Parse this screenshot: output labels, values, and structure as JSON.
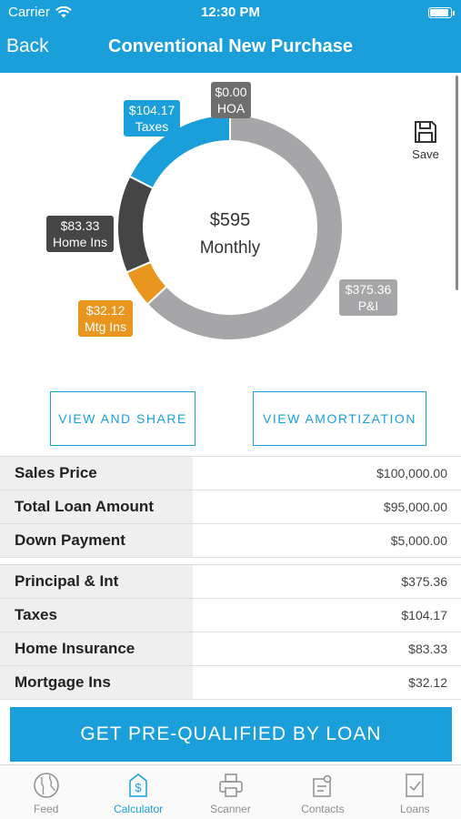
{
  "status_bar": {
    "carrier": "Carrier",
    "time": "12:30 PM"
  },
  "nav": {
    "back_label": "Back",
    "title": "Conventional New Purchase"
  },
  "chart_data": {
    "type": "pie",
    "center_amount": "$595",
    "center_label": "Monthly",
    "slices": [
      {
        "name": "P&I",
        "display": "$375.36",
        "value": 375.36,
        "color": "#a6a6a8"
      },
      {
        "name": "Mtg Ins",
        "display": "$32.12",
        "value": 32.12,
        "color": "#e8961e"
      },
      {
        "name": "Home Ins",
        "display": "$83.33",
        "value": 83.33,
        "color": "#454545"
      },
      {
        "name": "Taxes",
        "display": "$104.17",
        "value": 104.17,
        "color": "#1a9fdb"
      },
      {
        "name": "HOA",
        "display": "$0.00",
        "value": 0,
        "color": "#6e6e6e"
      }
    ]
  },
  "save_label": "Save",
  "buttons": {
    "view_share": "VIEW AND SHARE",
    "view_amortization": "VIEW AMORTIZATION"
  },
  "loan_table": [
    {
      "label": "Sales Price",
      "value": "$100,000.00"
    },
    {
      "label": "Total Loan Amount",
      "value": "$95,000.00"
    },
    {
      "label": "Down Payment",
      "value": "$5,000.00"
    }
  ],
  "payment_table": [
    {
      "label": "Principal & Int",
      "value": "$375.36"
    },
    {
      "label": "Taxes",
      "value": "$104.17"
    },
    {
      "label": "Home Insurance",
      "value": "$83.33"
    },
    {
      "label": "Mortgage Ins",
      "value": "$32.12"
    }
  ],
  "cta_label": "GET PRE-QUALIFIED BY LOAN",
  "tabs": [
    {
      "label": "Feed",
      "icon": "globe-icon"
    },
    {
      "label": "Calculator",
      "icon": "calculator-icon"
    },
    {
      "label": "Scanner",
      "icon": "printer-icon"
    },
    {
      "label": "Contacts",
      "icon": "contacts-icon"
    },
    {
      "label": "Loans",
      "icon": "document-check-icon"
    }
  ],
  "colors": {
    "accent": "#1a9fdb"
  }
}
